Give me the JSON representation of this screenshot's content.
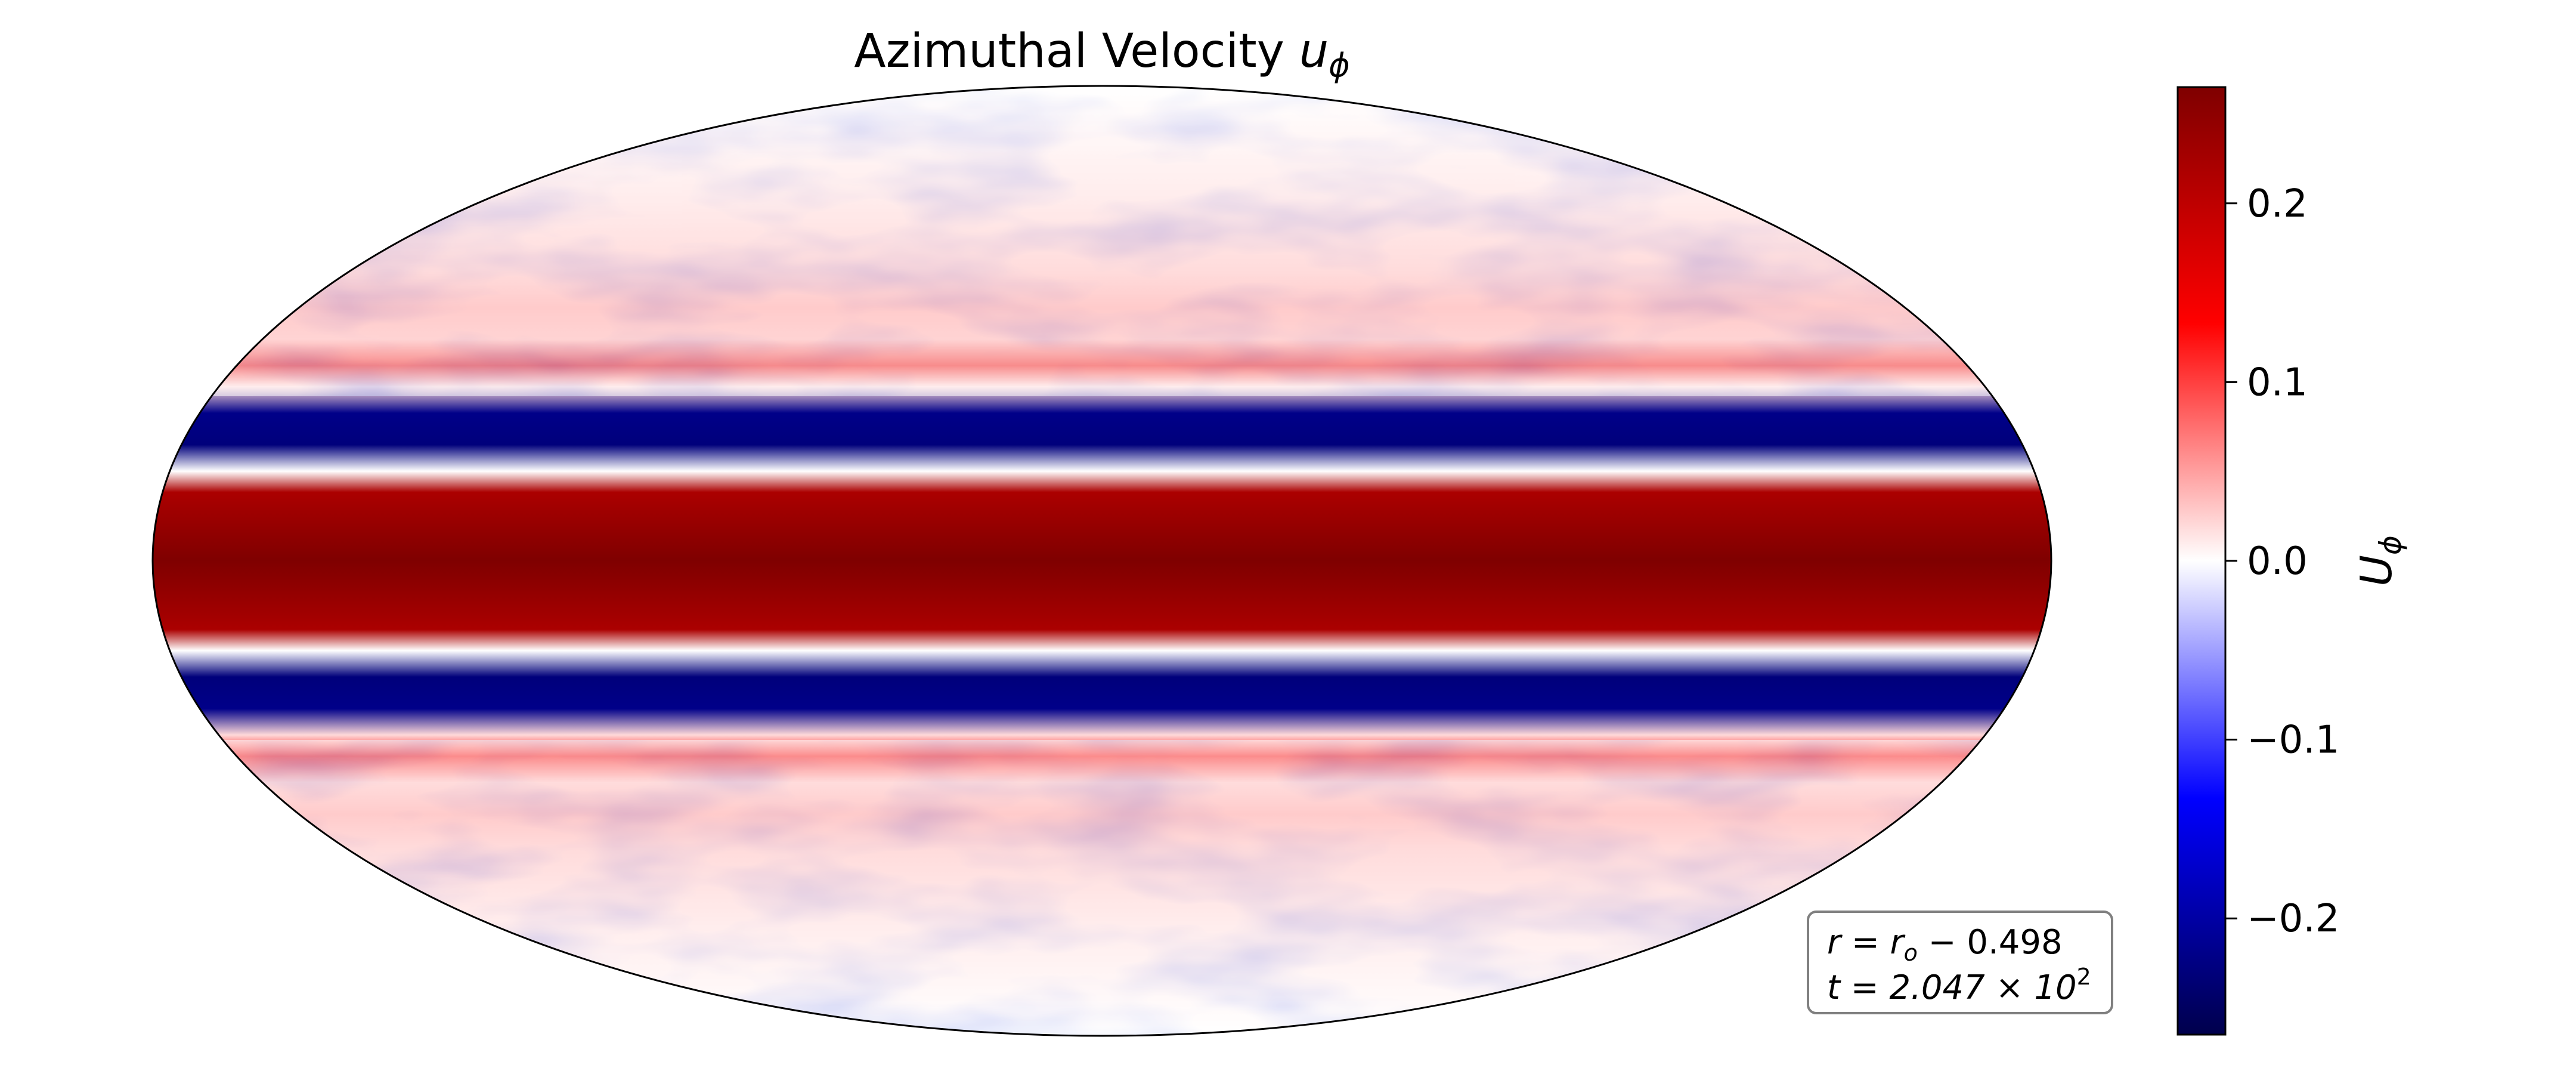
{
  "figure": {
    "title_main": "Azimuthal Velocity ",
    "title_var": "u",
    "title_sub": "ϕ"
  },
  "chart_data": {
    "type": "heatmap",
    "projection": "mollweide",
    "title": "Azimuthal Velocity u_ϕ",
    "field": "u_ϕ",
    "value_range": [
      -0.265,
      0.265
    ],
    "colormap": "seismic",
    "colormap_stops": [
      {
        "value": -0.265,
        "color": "#00004c"
      },
      {
        "value": -0.133,
        "color": "#0000ff"
      },
      {
        "value": 0.0,
        "color": "#ffffff"
      },
      {
        "value": 0.133,
        "color": "#ff0000"
      },
      {
        "value": 0.265,
        "color": "#7f0000"
      }
    ],
    "zonal_mean_profile": [
      {
        "lat": 90,
        "u": 0.0
      },
      {
        "lat": 70,
        "u": 0.02
      },
      {
        "lat": 55,
        "u": 0.04
      },
      {
        "lat": 48,
        "u": 0.06
      },
      {
        "lat": 42,
        "u": 0.05
      },
      {
        "lat": 37,
        "u": 0.15
      },
      {
        "lat": 33,
        "u": 0.02
      },
      {
        "lat": 28,
        "u": -0.22
      },
      {
        "lat": 22,
        "u": -0.23
      },
      {
        "lat": 17,
        "u": 0.0
      },
      {
        "lat": 13,
        "u": 0.22
      },
      {
        "lat": 0,
        "u": 0.265
      },
      {
        "lat": -13,
        "u": 0.22
      },
      {
        "lat": -17,
        "u": 0.0
      },
      {
        "lat": -22,
        "u": -0.23
      },
      {
        "lat": -28,
        "u": -0.22
      },
      {
        "lat": -33,
        "u": 0.02
      },
      {
        "lat": -37,
        "u": 0.14
      },
      {
        "lat": -42,
        "u": 0.04
      },
      {
        "lat": -48,
        "u": 0.06
      },
      {
        "lat": -55,
        "u": 0.04
      },
      {
        "lat": -70,
        "u": 0.02
      },
      {
        "lat": -90,
        "u": 0.0
      }
    ],
    "colorbar": {
      "label": "U",
      "label_sub": "ϕ",
      "ticks": [
        -0.2,
        -0.1,
        0.0,
        0.1,
        0.2
      ],
      "tick_labels": [
        "−0.2",
        "−0.1",
        "0.0",
        "0.1",
        "0.2"
      ]
    },
    "annotation": {
      "line1": "r = r",
      "line1_sub": "o",
      "line1_rest": " −  0.498",
      "line2": "t = 2.047 × 10",
      "line2_sup": "2"
    }
  }
}
